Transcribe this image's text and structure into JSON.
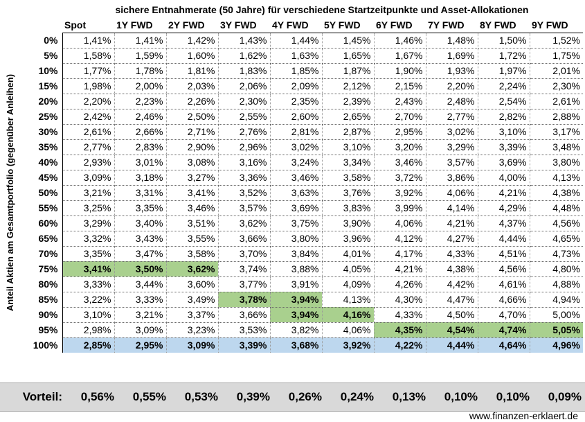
{
  "title": "sichere Entnahmerate (50 Jahre) für verschiedene Startzeitpunkte und Asset-Allokationen",
  "row_axis_label": "Anteil Aktien am Gesamtportfolio (gegenüber Anleihen)",
  "columns": [
    "Spot",
    "1Y FWD",
    "2Y FWD",
    "3Y FWD",
    "4Y FWD",
    "5Y FWD",
    "6Y FWD",
    "7Y FWD",
    "8Y FWD",
    "9Y FWD"
  ],
  "rows": [
    {
      "label": "0%",
      "values": [
        "1,41%",
        "1,41%",
        "1,42%",
        "1,43%",
        "1,44%",
        "1,45%",
        "1,46%",
        "1,48%",
        "1,50%",
        "1,52%"
      ]
    },
    {
      "label": "5%",
      "values": [
        "1,58%",
        "1,59%",
        "1,60%",
        "1,62%",
        "1,63%",
        "1,65%",
        "1,67%",
        "1,69%",
        "1,72%",
        "1,75%"
      ]
    },
    {
      "label": "10%",
      "values": [
        "1,77%",
        "1,78%",
        "1,81%",
        "1,83%",
        "1,85%",
        "1,87%",
        "1,90%",
        "1,93%",
        "1,97%",
        "2,01%"
      ]
    },
    {
      "label": "15%",
      "values": [
        "1,98%",
        "2,00%",
        "2,03%",
        "2,06%",
        "2,09%",
        "2,12%",
        "2,15%",
        "2,20%",
        "2,24%",
        "2,30%"
      ]
    },
    {
      "label": "20%",
      "values": [
        "2,20%",
        "2,23%",
        "2,26%",
        "2,30%",
        "2,35%",
        "2,39%",
        "2,43%",
        "2,48%",
        "2,54%",
        "2,61%"
      ]
    },
    {
      "label": "25%",
      "values": [
        "2,42%",
        "2,46%",
        "2,50%",
        "2,55%",
        "2,60%",
        "2,65%",
        "2,70%",
        "2,77%",
        "2,82%",
        "2,88%"
      ]
    },
    {
      "label": "30%",
      "values": [
        "2,61%",
        "2,66%",
        "2,71%",
        "2,76%",
        "2,81%",
        "2,87%",
        "2,95%",
        "3,02%",
        "3,10%",
        "3,17%"
      ]
    },
    {
      "label": "35%",
      "values": [
        "2,77%",
        "2,83%",
        "2,90%",
        "2,96%",
        "3,02%",
        "3,10%",
        "3,20%",
        "3,29%",
        "3,39%",
        "3,48%"
      ]
    },
    {
      "label": "40%",
      "values": [
        "2,93%",
        "3,01%",
        "3,08%",
        "3,16%",
        "3,24%",
        "3,34%",
        "3,46%",
        "3,57%",
        "3,69%",
        "3,80%"
      ]
    },
    {
      "label": "45%",
      "values": [
        "3,09%",
        "3,18%",
        "3,27%",
        "3,36%",
        "3,46%",
        "3,58%",
        "3,72%",
        "3,86%",
        "4,00%",
        "4,13%"
      ]
    },
    {
      "label": "50%",
      "values": [
        "3,21%",
        "3,31%",
        "3,41%",
        "3,52%",
        "3,63%",
        "3,76%",
        "3,92%",
        "4,06%",
        "4,21%",
        "4,38%"
      ]
    },
    {
      "label": "55%",
      "values": [
        "3,25%",
        "3,35%",
        "3,46%",
        "3,57%",
        "3,69%",
        "3,83%",
        "3,99%",
        "4,14%",
        "4,29%",
        "4,48%"
      ]
    },
    {
      "label": "60%",
      "values": [
        "3,29%",
        "3,40%",
        "3,51%",
        "3,62%",
        "3,75%",
        "3,90%",
        "4,06%",
        "4,21%",
        "4,37%",
        "4,56%"
      ]
    },
    {
      "label": "65%",
      "values": [
        "3,32%",
        "3,43%",
        "3,55%",
        "3,66%",
        "3,80%",
        "3,96%",
        "4,12%",
        "4,27%",
        "4,44%",
        "4,65%"
      ]
    },
    {
      "label": "70%",
      "values": [
        "3,35%",
        "3,47%",
        "3,58%",
        "3,70%",
        "3,84%",
        "4,01%",
        "4,17%",
        "4,33%",
        "4,51%",
        "4,73%"
      ]
    },
    {
      "label": "75%",
      "values": [
        "3,41%",
        "3,50%",
        "3,62%",
        "3,74%",
        "3,88%",
        "4,05%",
        "4,21%",
        "4,38%",
        "4,56%",
        "4,80%"
      ]
    },
    {
      "label": "80%",
      "values": [
        "3,33%",
        "3,44%",
        "3,60%",
        "3,77%",
        "3,91%",
        "4,09%",
        "4,26%",
        "4,42%",
        "4,61%",
        "4,88%"
      ]
    },
    {
      "label": "85%",
      "values": [
        "3,22%",
        "3,33%",
        "3,49%",
        "3,78%",
        "3,94%",
        "4,13%",
        "4,30%",
        "4,47%",
        "4,66%",
        "4,94%"
      ]
    },
    {
      "label": "90%",
      "values": [
        "3,10%",
        "3,21%",
        "3,37%",
        "3,66%",
        "3,94%",
        "4,16%",
        "4,33%",
        "4,50%",
        "4,70%",
        "5,00%"
      ]
    },
    {
      "label": "95%",
      "values": [
        "2,98%",
        "3,09%",
        "3,23%",
        "3,53%",
        "3,82%",
        "4,06%",
        "4,35%",
        "4,54%",
        "4,74%",
        "5,05%"
      ]
    },
    {
      "label": "100%",
      "values": [
        "2,85%",
        "2,95%",
        "3,09%",
        "3,39%",
        "3,68%",
        "3,92%",
        "4,22%",
        "4,44%",
        "4,64%",
        "4,96%"
      ]
    }
  ],
  "highlighted_cells": [
    [
      15,
      0
    ],
    [
      15,
      1
    ],
    [
      15,
      2
    ],
    [
      17,
      3
    ],
    [
      17,
      4
    ],
    [
      18,
      4
    ],
    [
      18,
      5
    ],
    [
      19,
      6
    ],
    [
      19,
      7
    ],
    [
      19,
      8
    ],
    [
      19,
      9
    ]
  ],
  "baseline_row_index": 20,
  "colors": {
    "highlight_green": "#a9d08e",
    "baseline_blue": "#bdd7ee",
    "summary_bar": "#d9d9d9"
  },
  "advantage": {
    "label": "Vorteil:",
    "values": [
      "0,56%",
      "0,55%",
      "0,53%",
      "0,39%",
      "0,26%",
      "0,24%",
      "0,13%",
      "0,10%",
      "0,10%",
      "0,09%"
    ]
  },
  "footer": "www.finanzen-erklaert.de"
}
